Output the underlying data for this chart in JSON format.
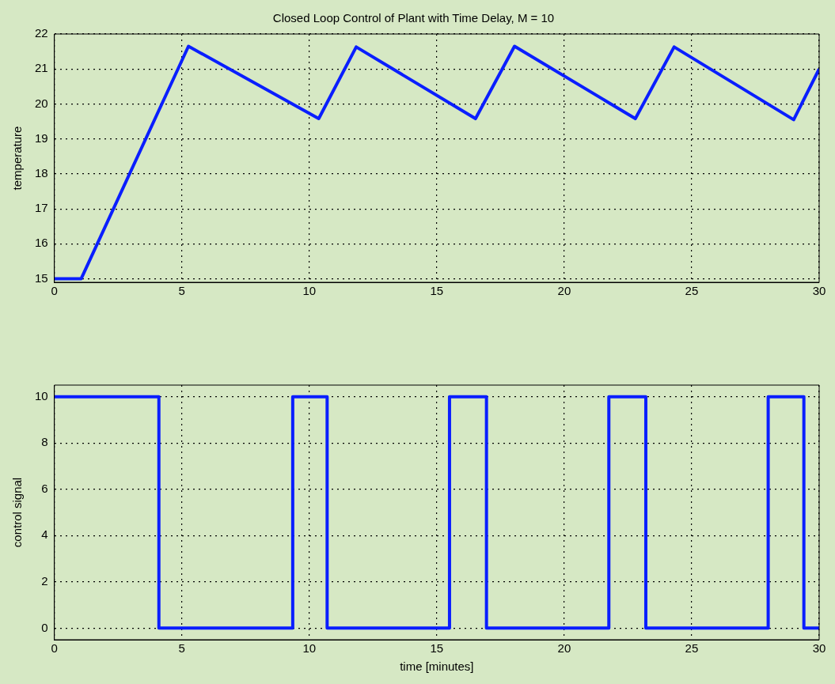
{
  "chart_data": [
    {
      "type": "line",
      "title": "Closed Loop Control of Plant with Time Delay, M = 10",
      "ylabel": "temperature",
      "xlim": [
        0,
        30
      ],
      "ylim": [
        14.9,
        22
      ],
      "xticks": [
        0,
        5,
        10,
        15,
        20,
        25,
        30
      ],
      "yticks": [
        15,
        16,
        17,
        18,
        19,
        20,
        21,
        22
      ],
      "grid": true,
      "legend": false,
      "marker": "none",
      "line_style": "solid",
      "x": [
        0,
        1.05,
        5.26,
        10.37,
        11.84,
        16.52,
        18.05,
        22.79,
        24.31,
        29.0,
        30
      ],
      "series": [
        {
          "color": "#0a1eff",
          "values": [
            15,
            15,
            21.65,
            19.58,
            21.63,
            19.58,
            21.65,
            19.58,
            21.63,
            19.55,
            21.0
          ]
        }
      ]
    },
    {
      "type": "step",
      "xlabel": "time [minutes]",
      "ylabel": "control signal",
      "xlim": [
        0,
        30
      ],
      "ylim": [
        -0.5,
        10.5
      ],
      "xticks": [
        0,
        5,
        10,
        15,
        20,
        25,
        30
      ],
      "yticks": [
        0,
        2,
        4,
        6,
        8,
        10
      ],
      "grid": true,
      "legend": false,
      "marker": "none",
      "line_style": "solid",
      "x": [
        0,
        4.1,
        9.35,
        10.7,
        15.5,
        16.95,
        21.75,
        23.2,
        28.0,
        29.4,
        30
      ],
      "series": [
        {
          "color": "#0a1eff",
          "values": [
            10,
            0,
            10,
            0,
            10,
            0,
            10,
            0,
            10,
            0,
            0
          ]
        }
      ]
    }
  ]
}
